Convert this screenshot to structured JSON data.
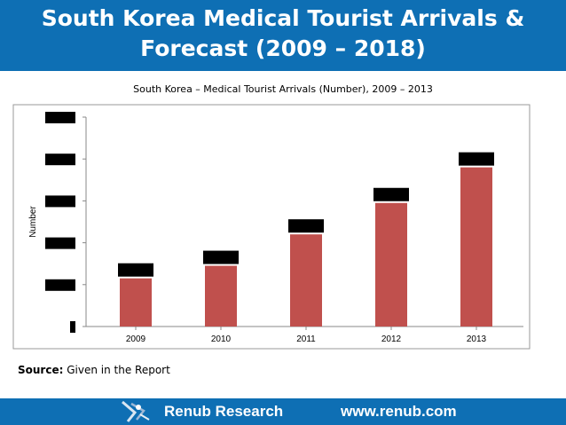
{
  "header": {
    "title_line1": "South Korea Medical Tourist Arrivals &",
    "title_line2": "Forecast  (2009 – 2018)"
  },
  "source": {
    "label": "Source:",
    "text": " Given in the Report"
  },
  "footer": {
    "brand": "Renub Research",
    "url": "www.renub.com"
  },
  "colors": {
    "header_bg": "#0e6fb4",
    "bar": "#c0504d",
    "redaction": "#000000"
  },
  "chart_data": {
    "type": "bar",
    "title": "South Korea – Medical Tourist Arrivals (Number), 2009 – 2013",
    "xlabel": "",
    "ylabel": "Number",
    "categories": [
      "2009",
      "2010",
      "2011",
      "2012",
      "2013"
    ],
    "values": [
      0.23,
      0.29,
      0.44,
      0.59,
      0.76
    ],
    "ylim": [
      0,
      1
    ],
    "grid": false,
    "legend": "none",
    "value_unit": "share of y-axis range (tick and data labels are blacked out in the original)"
  }
}
